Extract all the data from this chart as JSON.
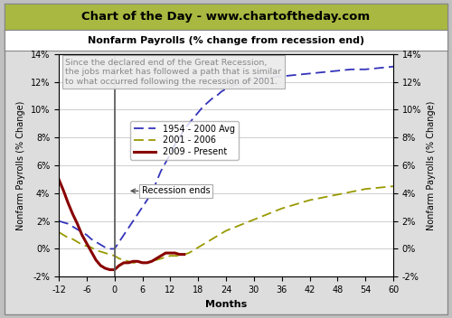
{
  "title_banner": "Chart of the Day - www.chartoftheday.com",
  "subtitle": "Nonfarm Payrolls (% change from recession end)",
  "annotation": "Since the declared end of the Great Recession,\nthe jobs market has followed a path that is similar\nto what occurred following the recession of 2001.",
  "xlabel": "Months",
  "ylabel": "Nonfarm Payrolls (% Change)",
  "banner_bg": "#A8B840",
  "banner_text_color": "#000000",
  "outer_bg": "#C0C0C0",
  "plot_bg": "#FFFFFF",
  "xlim": [
    -12,
    60
  ],
  "ylim": [
    -0.02,
    0.14
  ],
  "xticks": [
    -12,
    -6,
    0,
    6,
    12,
    18,
    24,
    30,
    36,
    42,
    48,
    54,
    60
  ],
  "yticks": [
    -0.02,
    0.0,
    0.02,
    0.04,
    0.06,
    0.08,
    0.1,
    0.12,
    0.14
  ],
  "series_1954_x": [
    -12,
    -11,
    -10,
    -9,
    -8,
    -7,
    -6,
    -5,
    -4,
    -3,
    -2,
    -1,
    0,
    1,
    2,
    3,
    4,
    5,
    6,
    7,
    8,
    9,
    10,
    11,
    12,
    13,
    14,
    15,
    16,
    17,
    18,
    19,
    20,
    21,
    22,
    23,
    24,
    25,
    26,
    27,
    28,
    29,
    30,
    33,
    36,
    39,
    42,
    45,
    48,
    51,
    54,
    57,
    60
  ],
  "series_1954_y": [
    0.02,
    0.019,
    0.018,
    0.016,
    0.014,
    0.012,
    0.01,
    0.007,
    0.005,
    0.003,
    0.001,
    0.0,
    0.0,
    0.005,
    0.01,
    0.015,
    0.02,
    0.025,
    0.03,
    0.035,
    0.04,
    0.048,
    0.056,
    0.062,
    0.068,
    0.075,
    0.08,
    0.086,
    0.09,
    0.094,
    0.098,
    0.102,
    0.105,
    0.108,
    0.11,
    0.113,
    0.115,
    0.117,
    0.118,
    0.119,
    0.12,
    0.121,
    0.122,
    0.123,
    0.124,
    0.125,
    0.126,
    0.127,
    0.128,
    0.129,
    0.129,
    0.13,
    0.131
  ],
  "series_2001_x": [
    -12,
    -11,
    -10,
    -9,
    -8,
    -7,
    -6,
    -5,
    -4,
    -3,
    -2,
    -1,
    0,
    1,
    2,
    3,
    4,
    5,
    6,
    7,
    8,
    9,
    10,
    11,
    12,
    13,
    14,
    15,
    16,
    17,
    18,
    19,
    20,
    21,
    22,
    23,
    24,
    27,
    30,
    33,
    36,
    39,
    42,
    45,
    48,
    51,
    54,
    57,
    60
  ],
  "series_2001_y": [
    0.012,
    0.01,
    0.008,
    0.007,
    0.005,
    0.003,
    0.002,
    0.001,
    -0.001,
    -0.002,
    -0.003,
    -0.004,
    -0.005,
    -0.007,
    -0.008,
    -0.009,
    -0.01,
    -0.01,
    -0.01,
    -0.01,
    -0.009,
    -0.008,
    -0.007,
    -0.006,
    -0.005,
    -0.005,
    -0.005,
    -0.004,
    -0.003,
    -0.001,
    0.001,
    0.003,
    0.005,
    0.007,
    0.009,
    0.011,
    0.013,
    0.017,
    0.021,
    0.025,
    0.029,
    0.032,
    0.035,
    0.037,
    0.039,
    0.041,
    0.043,
    0.044,
    0.045
  ],
  "series_2009_x": [
    -12,
    -11,
    -10,
    -9,
    -8,
    -7,
    -6,
    -5,
    -4,
    -3,
    -2,
    -1,
    0,
    1,
    2,
    3,
    4,
    5,
    6,
    7,
    8,
    9,
    10,
    11,
    12,
    13,
    14,
    15
  ],
  "series_2009_y": [
    0.05,
    0.042,
    0.033,
    0.025,
    0.018,
    0.01,
    0.004,
    -0.002,
    -0.008,
    -0.012,
    -0.014,
    -0.015,
    -0.015,
    -0.012,
    -0.01,
    -0.01,
    -0.009,
    -0.009,
    -0.01,
    -0.01,
    -0.009,
    -0.007,
    -0.005,
    -0.003,
    -0.003,
    -0.003,
    -0.004,
    -0.004
  ],
  "color_1954": "#3333BB",
  "color_2001": "#999900",
  "color_2009": "#880000",
  "recession_line_color": "#606060",
  "legend_labels": [
    "1954 - 2000 Avg",
    "2001 - 2006",
    "2009 - Present"
  ],
  "recession_label": "Recession ends"
}
